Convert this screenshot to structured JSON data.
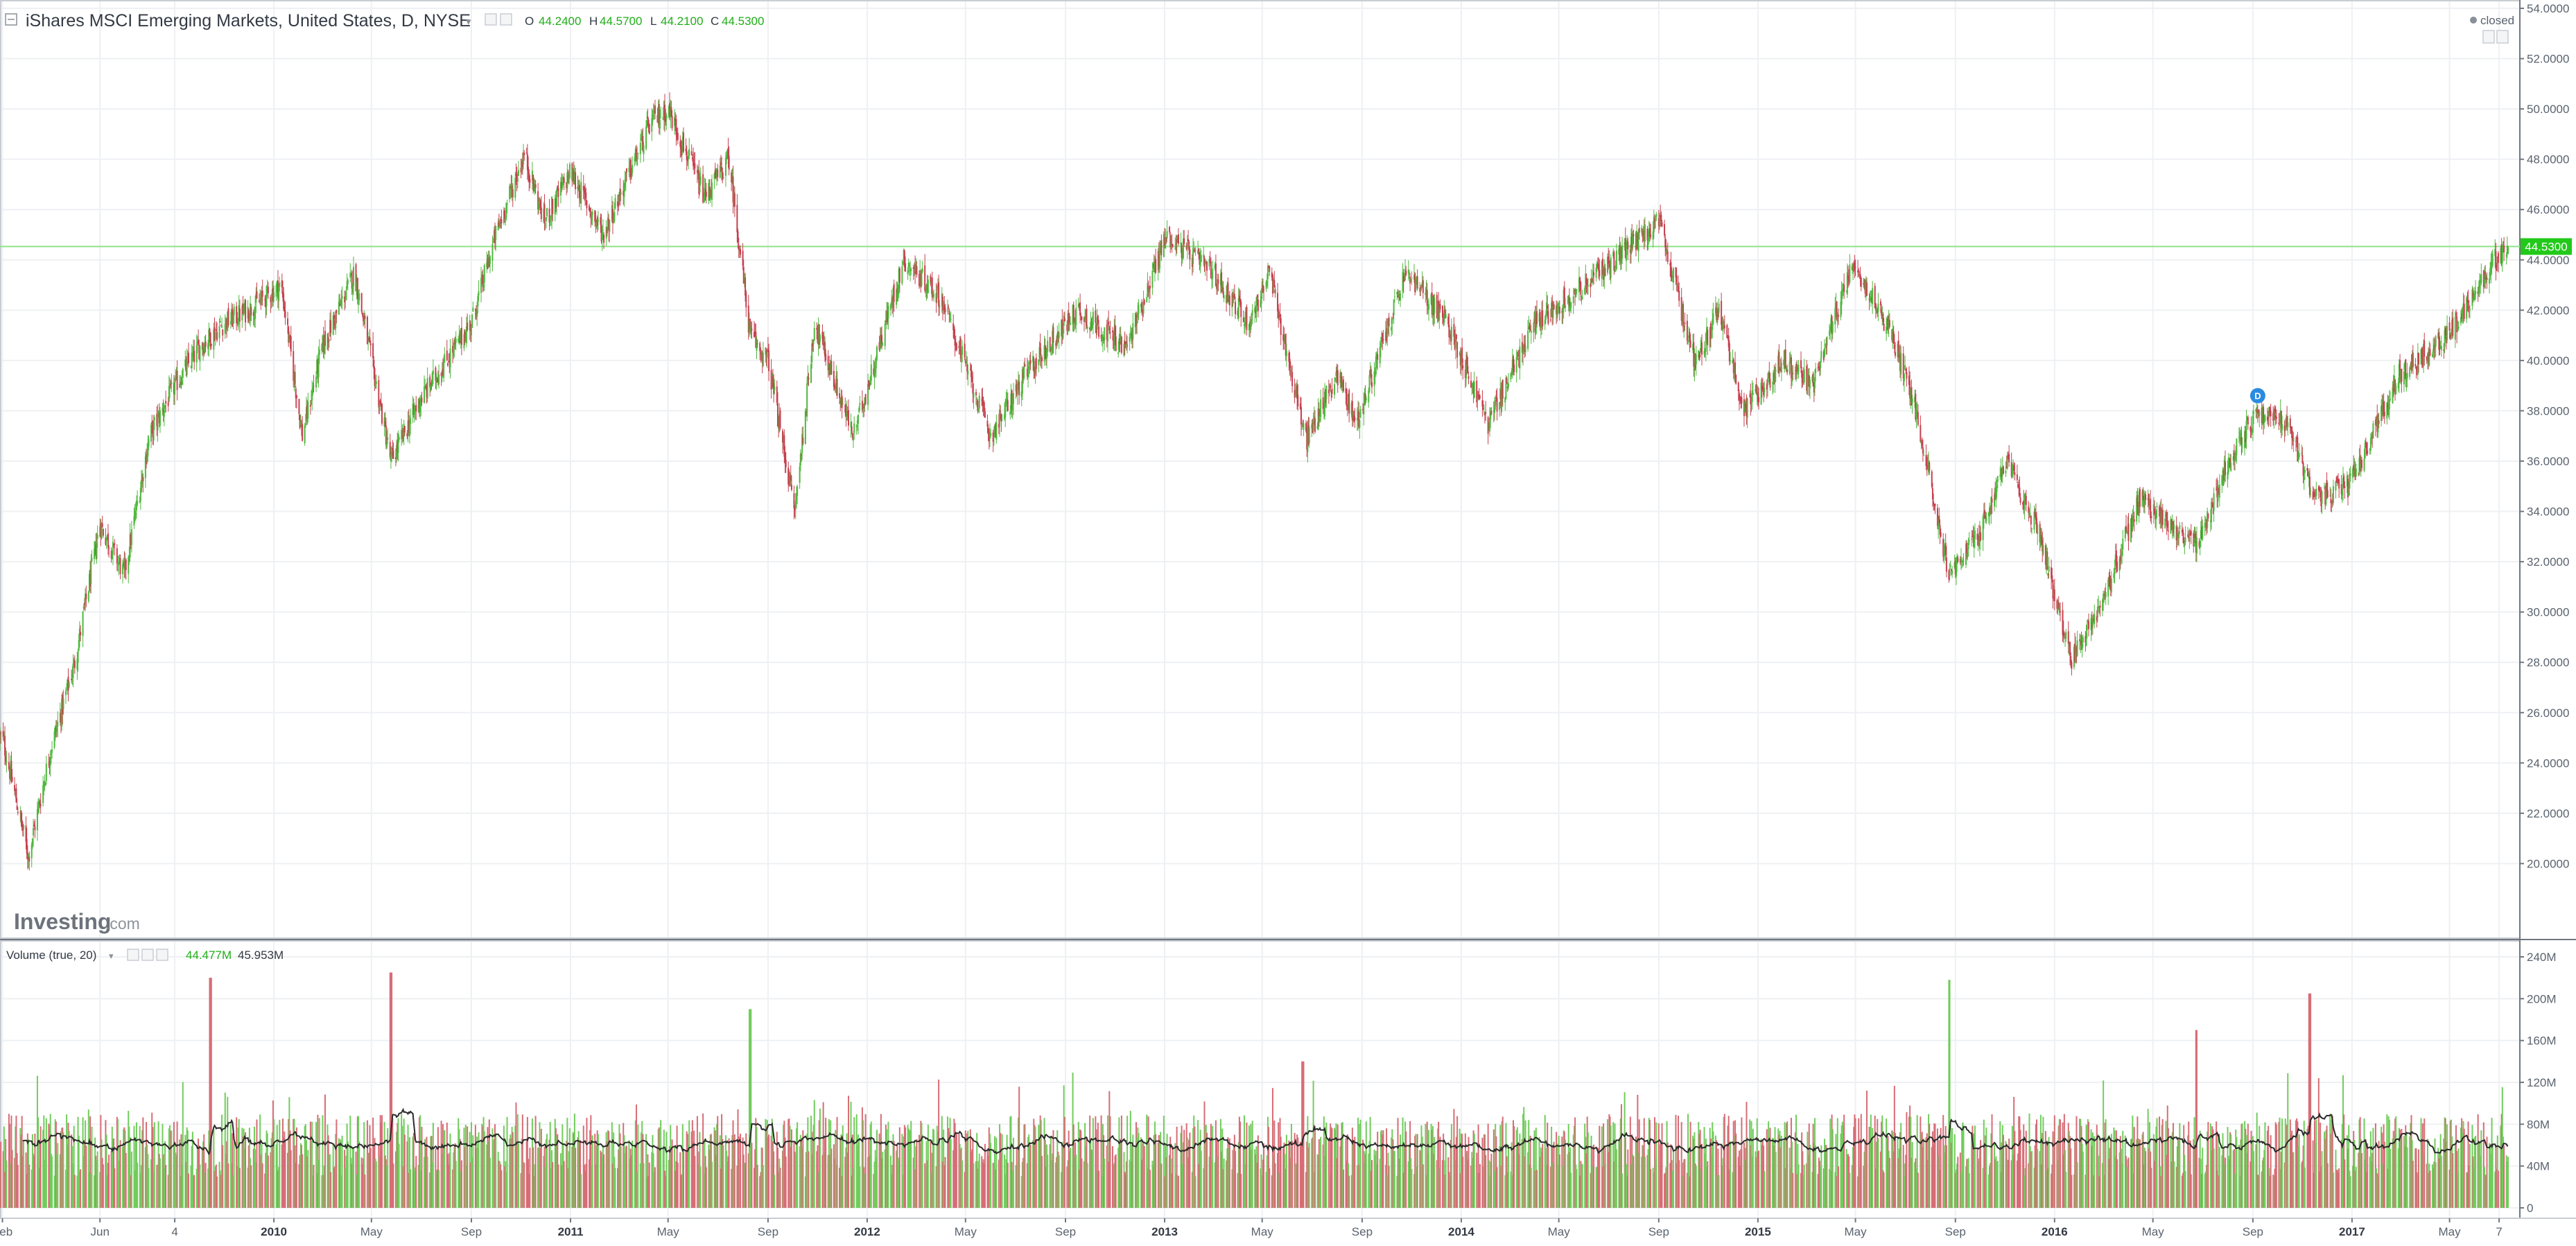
{
  "header": {
    "title": "iShares MSCI Emerging Markets, United States, D, NYSE",
    "ohlc": [
      {
        "key": "O",
        "value": "44.2400"
      },
      {
        "key": "H",
        "value": "44.5700"
      },
      {
        "key": "L",
        "value": "44.2100"
      },
      {
        "key": "C",
        "value": "44.5300"
      }
    ],
    "status": "closed"
  },
  "volume_header": {
    "title": "Volume (true, 20)",
    "value1": "44.477M",
    "value2": "45.953M"
  },
  "watermark": {
    "brand": "Investing",
    "suffix": ".com"
  },
  "last_price": "44.5300",
  "marker_label": "D",
  "colors": {
    "up": "#4fb83e",
    "down": "#c5404e",
    "vol_up": "#72cc5d",
    "vol_down": "#d76d76",
    "ma": "#2b2b2b",
    "last_price_bg": "#22c91a",
    "last_price_line": "#8fe38a",
    "legend_value": "#1fae17",
    "marker": "#2a8be0"
  },
  "chart_data": [
    {
      "type": "candlestick",
      "title": "iShares MSCI Emerging Markets, United States, D, NYSE",
      "x_range": [
        "2009-02",
        "2017-07"
      ],
      "ylim": [
        18,
        54
      ],
      "y_ticks": [
        "20.0000",
        "22.0000",
        "24.0000",
        "26.0000",
        "28.0000",
        "30.0000",
        "32.0000",
        "34.0000",
        "36.0000",
        "38.0000",
        "40.0000",
        "42.0000",
        "44.0000",
        "46.0000",
        "48.0000",
        "50.0000",
        "52.0000",
        "54.0000"
      ],
      "x_tick_labels": [
        {
          "label": "Feb",
          "date": "2009-02",
          "bold": false
        },
        {
          "label": "Jun",
          "date": "2009-06",
          "bold": false
        },
        {
          "label": "4",
          "date": "2009-09",
          "bold": false
        },
        {
          "label": "2010",
          "date": "2010-01",
          "bold": true
        },
        {
          "label": "May",
          "date": "2010-05",
          "bold": false
        },
        {
          "label": "Sep",
          "date": "2010-09",
          "bold": false
        },
        {
          "label": "2011",
          "date": "2011-01",
          "bold": true
        },
        {
          "label": "May",
          "date": "2011-05",
          "bold": false
        },
        {
          "label": "Sep",
          "date": "2011-09",
          "bold": false
        },
        {
          "label": "2012",
          "date": "2012-01",
          "bold": true
        },
        {
          "label": "May",
          "date": "2012-05",
          "bold": false
        },
        {
          "label": "Sep",
          "date": "2012-09",
          "bold": false
        },
        {
          "label": "2013",
          "date": "2013-01",
          "bold": true
        },
        {
          "label": "May",
          "date": "2013-05",
          "bold": false
        },
        {
          "label": "Sep",
          "date": "2013-09",
          "bold": false
        },
        {
          "label": "2014",
          "date": "2014-01",
          "bold": true
        },
        {
          "label": "May",
          "date": "2014-05",
          "bold": false
        },
        {
          "label": "Sep",
          "date": "2014-09",
          "bold": false
        },
        {
          "label": "2015",
          "date": "2015-01",
          "bold": true
        },
        {
          "label": "May",
          "date": "2015-05",
          "bold": false
        },
        {
          "label": "Sep",
          "date": "2015-09",
          "bold": false
        },
        {
          "label": "2016",
          "date": "2016-01",
          "bold": true
        },
        {
          "label": "May",
          "date": "2016-05",
          "bold": false
        },
        {
          "label": "Sep",
          "date": "2016-09",
          "bold": false
        },
        {
          "label": "2017",
          "date": "2017-01",
          "bold": true
        },
        {
          "label": "May",
          "date": "2017-05",
          "bold": false
        },
        {
          "label": "7",
          "date": "2017-07",
          "bold": false
        }
      ],
      "price_path": [
        {
          "date": "2009-02-01",
          "close": 25.0
        },
        {
          "date": "2009-03-05",
          "close": 20.3
        },
        {
          "date": "2009-04-01",
          "close": 24.5
        },
        {
          "date": "2009-05-01",
          "close": 28.0
        },
        {
          "date": "2009-06-01",
          "close": 33.5
        },
        {
          "date": "2009-07-01",
          "close": 31.5
        },
        {
          "date": "2009-08-01",
          "close": 37.0
        },
        {
          "date": "2009-09-01",
          "close": 39.0
        },
        {
          "date": "2009-10-01",
          "close": 40.5
        },
        {
          "date": "2009-11-01",
          "close": 41.5
        },
        {
          "date": "2009-12-01",
          "close": 42.0
        },
        {
          "date": "2010-01-10",
          "close": 43.0
        },
        {
          "date": "2010-02-05",
          "close": 37.0
        },
        {
          "date": "2010-03-01",
          "close": 40.5
        },
        {
          "date": "2010-04-10",
          "close": 43.5
        },
        {
          "date": "2010-05-25",
          "close": 36.0
        },
        {
          "date": "2010-07-01",
          "close": 38.5
        },
        {
          "date": "2010-08-01",
          "close": 40.0
        },
        {
          "date": "2010-09-01",
          "close": 41.5
        },
        {
          "date": "2010-10-01",
          "close": 45.0
        },
        {
          "date": "2010-11-05",
          "close": 48.2
        },
        {
          "date": "2010-11-30",
          "close": 45.5
        },
        {
          "date": "2011-01-01",
          "close": 47.5
        },
        {
          "date": "2011-02-10",
          "close": 45.0
        },
        {
          "date": "2011-04-10",
          "close": 49.5
        },
        {
          "date": "2011-05-01",
          "close": 50.0
        },
        {
          "date": "2011-06-15",
          "close": 46.5
        },
        {
          "date": "2011-07-15",
          "close": 48.0
        },
        {
          "date": "2011-08-10",
          "close": 41.0
        },
        {
          "date": "2011-09-01",
          "close": 40.0
        },
        {
          "date": "2011-10-04",
          "close": 34.0
        },
        {
          "date": "2011-10-28",
          "close": 41.5
        },
        {
          "date": "2011-12-15",
          "close": 37.0
        },
        {
          "date": "2012-02-15",
          "close": 44.0
        },
        {
          "date": "2012-04-01",
          "close": 42.5
        },
        {
          "date": "2012-06-01",
          "close": 37.0
        },
        {
          "date": "2012-07-15",
          "close": 39.5
        },
        {
          "date": "2012-09-15",
          "close": 42.0
        },
        {
          "date": "2012-11-15",
          "close": 40.5
        },
        {
          "date": "2013-01-03",
          "close": 45.0
        },
        {
          "date": "2013-03-01",
          "close": 43.5
        },
        {
          "date": "2013-04-15",
          "close": 41.5
        },
        {
          "date": "2013-05-10",
          "close": 43.5
        },
        {
          "date": "2013-06-24",
          "close": 36.8
        },
        {
          "date": "2013-08-01",
          "close": 39.5
        },
        {
          "date": "2013-08-25",
          "close": 37.5
        },
        {
          "date": "2013-10-25",
          "close": 43.5
        },
        {
          "date": "2013-12-15",
          "close": 41.5
        },
        {
          "date": "2014-02-03",
          "close": 37.5
        },
        {
          "date": "2014-04-01",
          "close": 41.5
        },
        {
          "date": "2014-06-01",
          "close": 43.0
        },
        {
          "date": "2014-09-01",
          "close": 45.5
        },
        {
          "date": "2014-10-15",
          "close": 40.0
        },
        {
          "date": "2014-11-15",
          "close": 42.0
        },
        {
          "date": "2014-12-15",
          "close": 38.0
        },
        {
          "date": "2015-02-01",
          "close": 40.0
        },
        {
          "date": "2015-03-10",
          "close": 39.0
        },
        {
          "date": "2015-04-28",
          "close": 44.0
        },
        {
          "date": "2015-06-15",
          "close": 41.0
        },
        {
          "date": "2015-07-15",
          "close": 38.0
        },
        {
          "date": "2015-08-24",
          "close": 31.5
        },
        {
          "date": "2015-09-30",
          "close": 33.0
        },
        {
          "date": "2015-11-01",
          "close": 36.0
        },
        {
          "date": "2015-12-15",
          "close": 33.0
        },
        {
          "date": "2016-01-21",
          "close": 28.0
        },
        {
          "date": "2016-03-01",
          "close": 30.5
        },
        {
          "date": "2016-04-15",
          "close": 34.5
        },
        {
          "date": "2016-06-25",
          "close": 32.5
        },
        {
          "date": "2016-08-01",
          "close": 36.0
        },
        {
          "date": "2016-09-07",
          "close": 38.0
        },
        {
          "date": "2016-10-15",
          "close": 37.5
        },
        {
          "date": "2016-11-15",
          "close": 34.5
        },
        {
          "date": "2016-12-28",
          "close": 35.0
        },
        {
          "date": "2017-03-01",
          "close": 39.5
        },
        {
          "date": "2017-05-01",
          "close": 41.0
        },
        {
          "date": "2017-06-15",
          "close": 43.5
        },
        {
          "date": "2017-07-07",
          "close": 44.53
        }
      ],
      "last_price": 44.53,
      "marker_date": "2016-09-07"
    },
    {
      "type": "bar",
      "title": "Volume (true, 20)",
      "ylim": [
        0,
        240
      ],
      "y_unit": "M",
      "y_ticks": [
        "0",
        "40M",
        "80M",
        "120M",
        "160M",
        "200M",
        "240M"
      ],
      "typical_volume_millions": [
        30,
        90
      ],
      "moving_average_millions": [
        55,
        80
      ],
      "spikes": [
        {
          "date": "2009-10-15",
          "value": 220,
          "direction": "down"
        },
        {
          "date": "2010-05-25",
          "value": 225,
          "direction": "down"
        },
        {
          "date": "2011-08-10",
          "value": 190,
          "direction": "up"
        },
        {
          "date": "2013-06-20",
          "value": 140,
          "direction": "down"
        },
        {
          "date": "2015-08-24",
          "value": 218,
          "direction": "up"
        },
        {
          "date": "2016-06-24",
          "value": 170,
          "direction": "down"
        },
        {
          "date": "2016-11-10",
          "value": 205,
          "direction": "down"
        }
      ]
    }
  ]
}
